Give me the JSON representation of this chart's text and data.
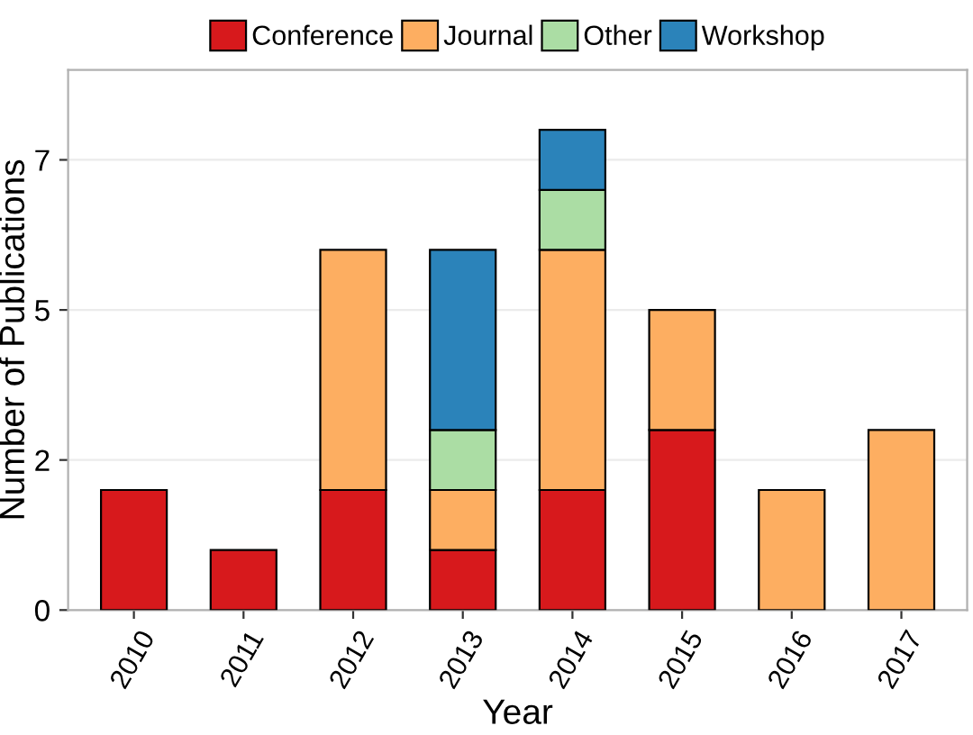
{
  "chart_data": {
    "type": "bar",
    "stacked": true,
    "xlabel": "Year",
    "ylabel": "Number of Publications",
    "categories": [
      "2010",
      "2011",
      "2012",
      "2013",
      "2014",
      "2015",
      "2016",
      "2017"
    ],
    "series": [
      {
        "name": "Conference",
        "color": "#d7191c",
        "values": [
          2,
          1,
          2,
          1,
          2,
          3,
          null,
          null
        ]
      },
      {
        "name": "Journal",
        "color": "#fdae61",
        "values": [
          null,
          null,
          4,
          1,
          4,
          2,
          2,
          3
        ]
      },
      {
        "name": "Other",
        "color": "#abdda4",
        "values": [
          null,
          null,
          null,
          1,
          1,
          null,
          null,
          null
        ]
      },
      {
        "name": "Workshop",
        "color": "#2b83ba",
        "values": [
          null,
          null,
          null,
          3,
          1,
          null,
          null,
          null
        ]
      }
    ],
    "ylim": [
      0,
      9
    ],
    "yticks": [
      0,
      {
        "value": 2.5,
        "label": "2"
      },
      5,
      {
        "value": 7.5,
        "label": "7"
      }
    ],
    "grid": "y",
    "legend": "top"
  }
}
